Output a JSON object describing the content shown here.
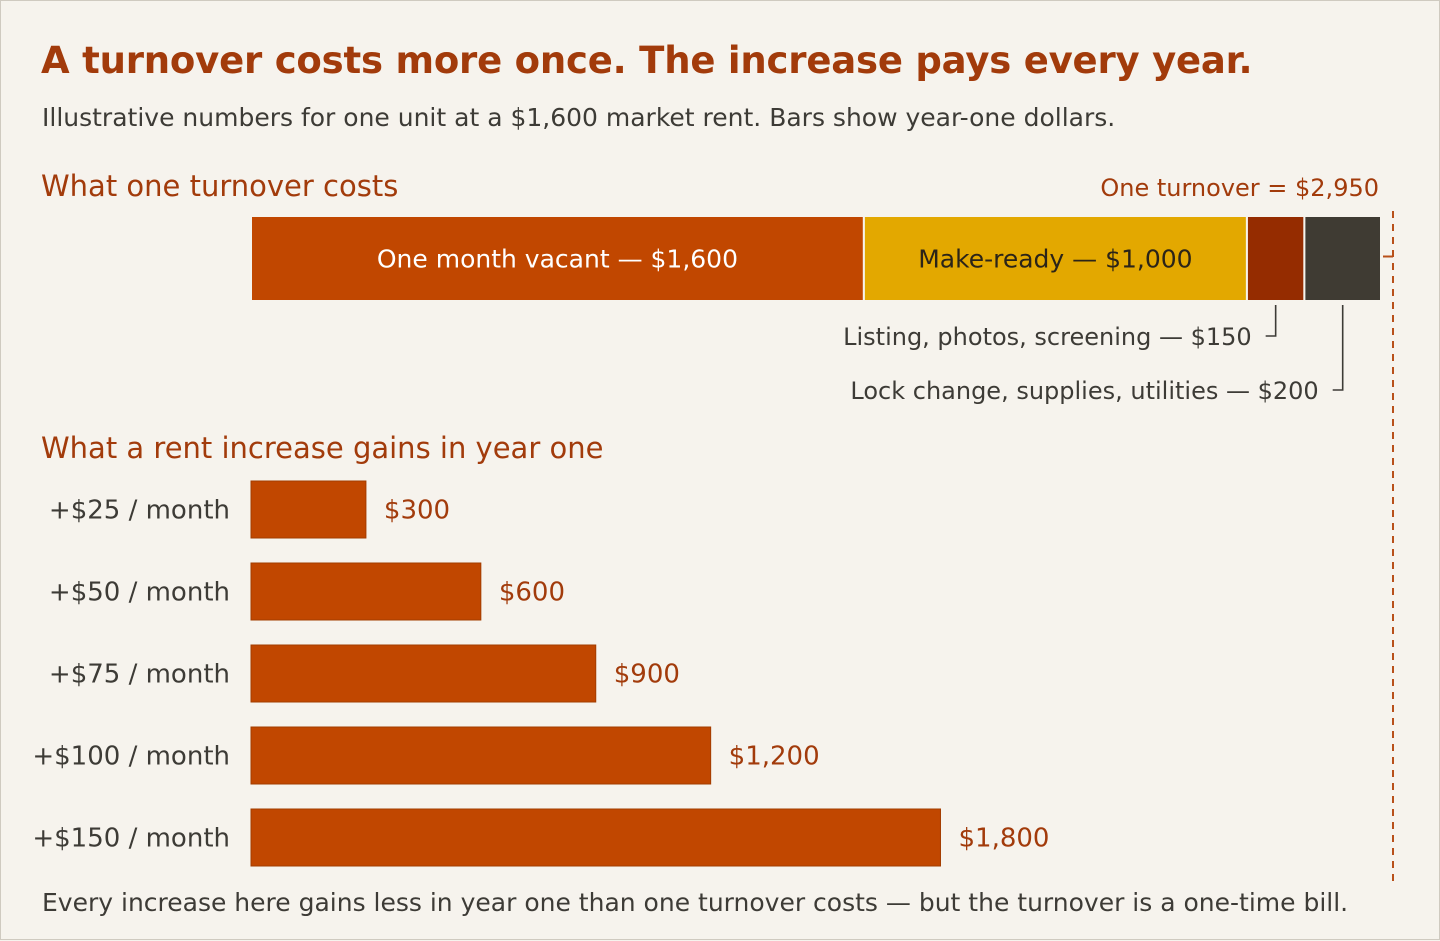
{
  "header": {
    "title": "A turnover costs more once. The increase pays every year.",
    "subtitle": "Illustrative numbers for one unit at a $1,600 market rent. Bars show year-one dollars."
  },
  "sections": {
    "turnover": "What one turnover costs",
    "increase": "What a rent increase gains in year one"
  },
  "footer": "Every increase here gains less in year one than one turnover costs — but the turnover is a one-time bill.",
  "colors": {
    "background": "#f6f3ed",
    "accent_text": "#a23b0b",
    "vacant": "#c14700",
    "make_ready": "#e3a800",
    "listing": "#952c00",
    "lock": "#3f3b33",
    "gain_bar": "#c14700",
    "dashed_line": "#b8501a",
    "body_text": "#3d3b36"
  },
  "chart_data": [
    {
      "type": "bar",
      "stacked": true,
      "orientation": "horizontal",
      "title": "What one turnover costs",
      "total_label": "One turnover  =  $2,950",
      "total": 2950,
      "segments": [
        {
          "name": "One month vacant",
          "value": 1600,
          "label": "One month vacant — $1,600",
          "label_position": "inside",
          "color": "#c14700",
          "text_color": "#ffffff"
        },
        {
          "name": "Make-ready",
          "value": 1000,
          "label": "Make-ready — $1,000",
          "label_position": "inside",
          "color": "#e3a800",
          "text_color": "#2b2418"
        },
        {
          "name": "Listing, photos, screening",
          "value": 150,
          "label": "Listing, photos, screening — $150",
          "label_position": "callout",
          "color": "#952c00"
        },
        {
          "name": "Lock change, supplies, utilities",
          "value": 200,
          "label": "Lock change, supplies, utilities — $200",
          "label_position": "callout",
          "color": "#3f3b33"
        }
      ]
    },
    {
      "type": "bar",
      "orientation": "horizontal",
      "title": "What a rent increase gains in year one",
      "categories": [
        "+$25 / month",
        "+$50 / month",
        "+$75 / month",
        "+$100 / month",
        "+$150 / month"
      ],
      "values": [
        300,
        600,
        900,
        1200,
        1800
      ],
      "value_labels": [
        "$300",
        "$600",
        "$900",
        "$1,200",
        "$1,800"
      ],
      "reference_line": {
        "value": 2950,
        "style": "dashed"
      },
      "xlim": [
        0,
        2950
      ]
    }
  ]
}
